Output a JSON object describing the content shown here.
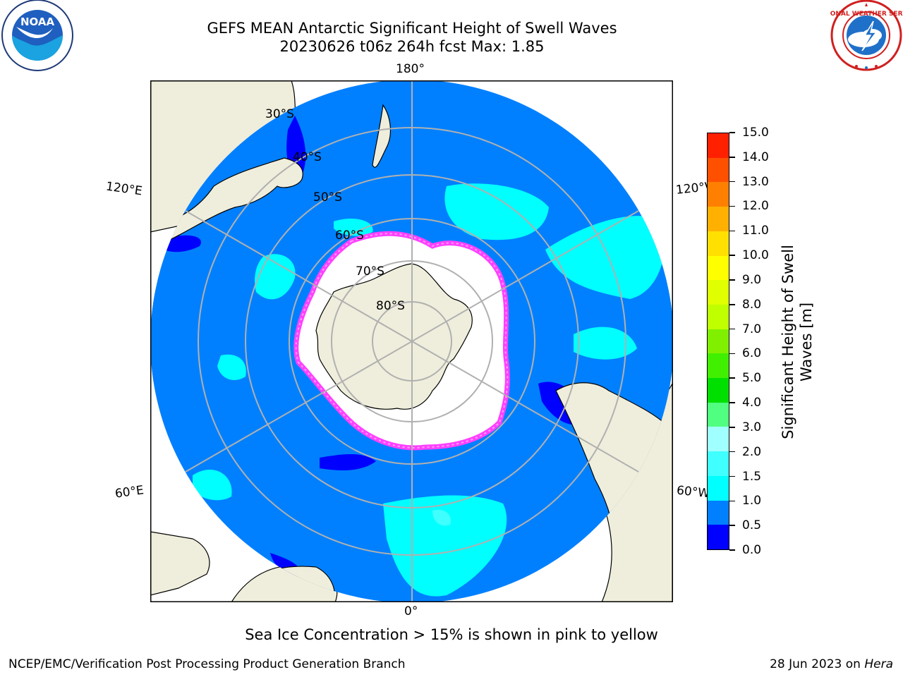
{
  "header": {
    "title_line1": "GEFS MEAN Antarctic Significant Height of Swell Waves",
    "title_line2": "20230626 t06z 264h fcst   Max: 1.85"
  },
  "logos": {
    "left": {
      "icon": "noaa-logo-icon",
      "text": "NOAA"
    },
    "right": {
      "icon": "national-weather-service-logo-icon",
      "text": "NATIONAL WEATHER SERVICE"
    }
  },
  "map": {
    "projection": "south-polar-stereographic",
    "longitude_labels": {
      "top": "180°",
      "bottom": "0°",
      "upper_left": "120°E",
      "lower_left": "60°E",
      "upper_right": "120°W",
      "lower_right": "60°W"
    },
    "latitude_labels": [
      "30°S",
      "40°S",
      "50°S",
      "60°S",
      "70°S",
      "80°S"
    ],
    "colors": {
      "land": "#efeedc",
      "ice": "#ffffff",
      "ocean_0_0_5": "#0000ff",
      "ocean_0_5_1_0": "#0080ff",
      "ocean_1_0_1_5": "#00ffff",
      "ocean_1_5_2_0": "#40ffff",
      "sea_ice_edge": "#ff40ff",
      "grid": "#b0b0b0"
    }
  },
  "colorbar": {
    "title_line1": "Significant Height of Swell",
    "title_line2": "Waves [m]",
    "tick_labels": [
      "0.0",
      "0.5",
      "1.0",
      "1.5",
      "2.0",
      "3.0",
      "4.0",
      "5.0",
      "6.0",
      "7.0",
      "8.0",
      "9.0",
      "10.0",
      "11.0",
      "12.0",
      "13.0",
      "14.0",
      "15.0"
    ],
    "segment_colors": [
      "#0000ff",
      "#0080ff",
      "#00ffff",
      "#40ffff",
      "#a0ffff",
      "#50ff80",
      "#00e000",
      "#40f000",
      "#80f000",
      "#c0ff00",
      "#e0ff00",
      "#ffff00",
      "#ffe000",
      "#ffb000",
      "#ff8000",
      "#ff5000",
      "#ff2000",
      "#ff0000"
    ]
  },
  "note": "Sea Ice Concentration > 15% is shown in pink to yellow",
  "footer": {
    "left": "NCEP/EMC/Verification Post Processing Product Generation Branch",
    "right_prefix": "28 Jun 2023 on ",
    "right_host": "Hera"
  }
}
